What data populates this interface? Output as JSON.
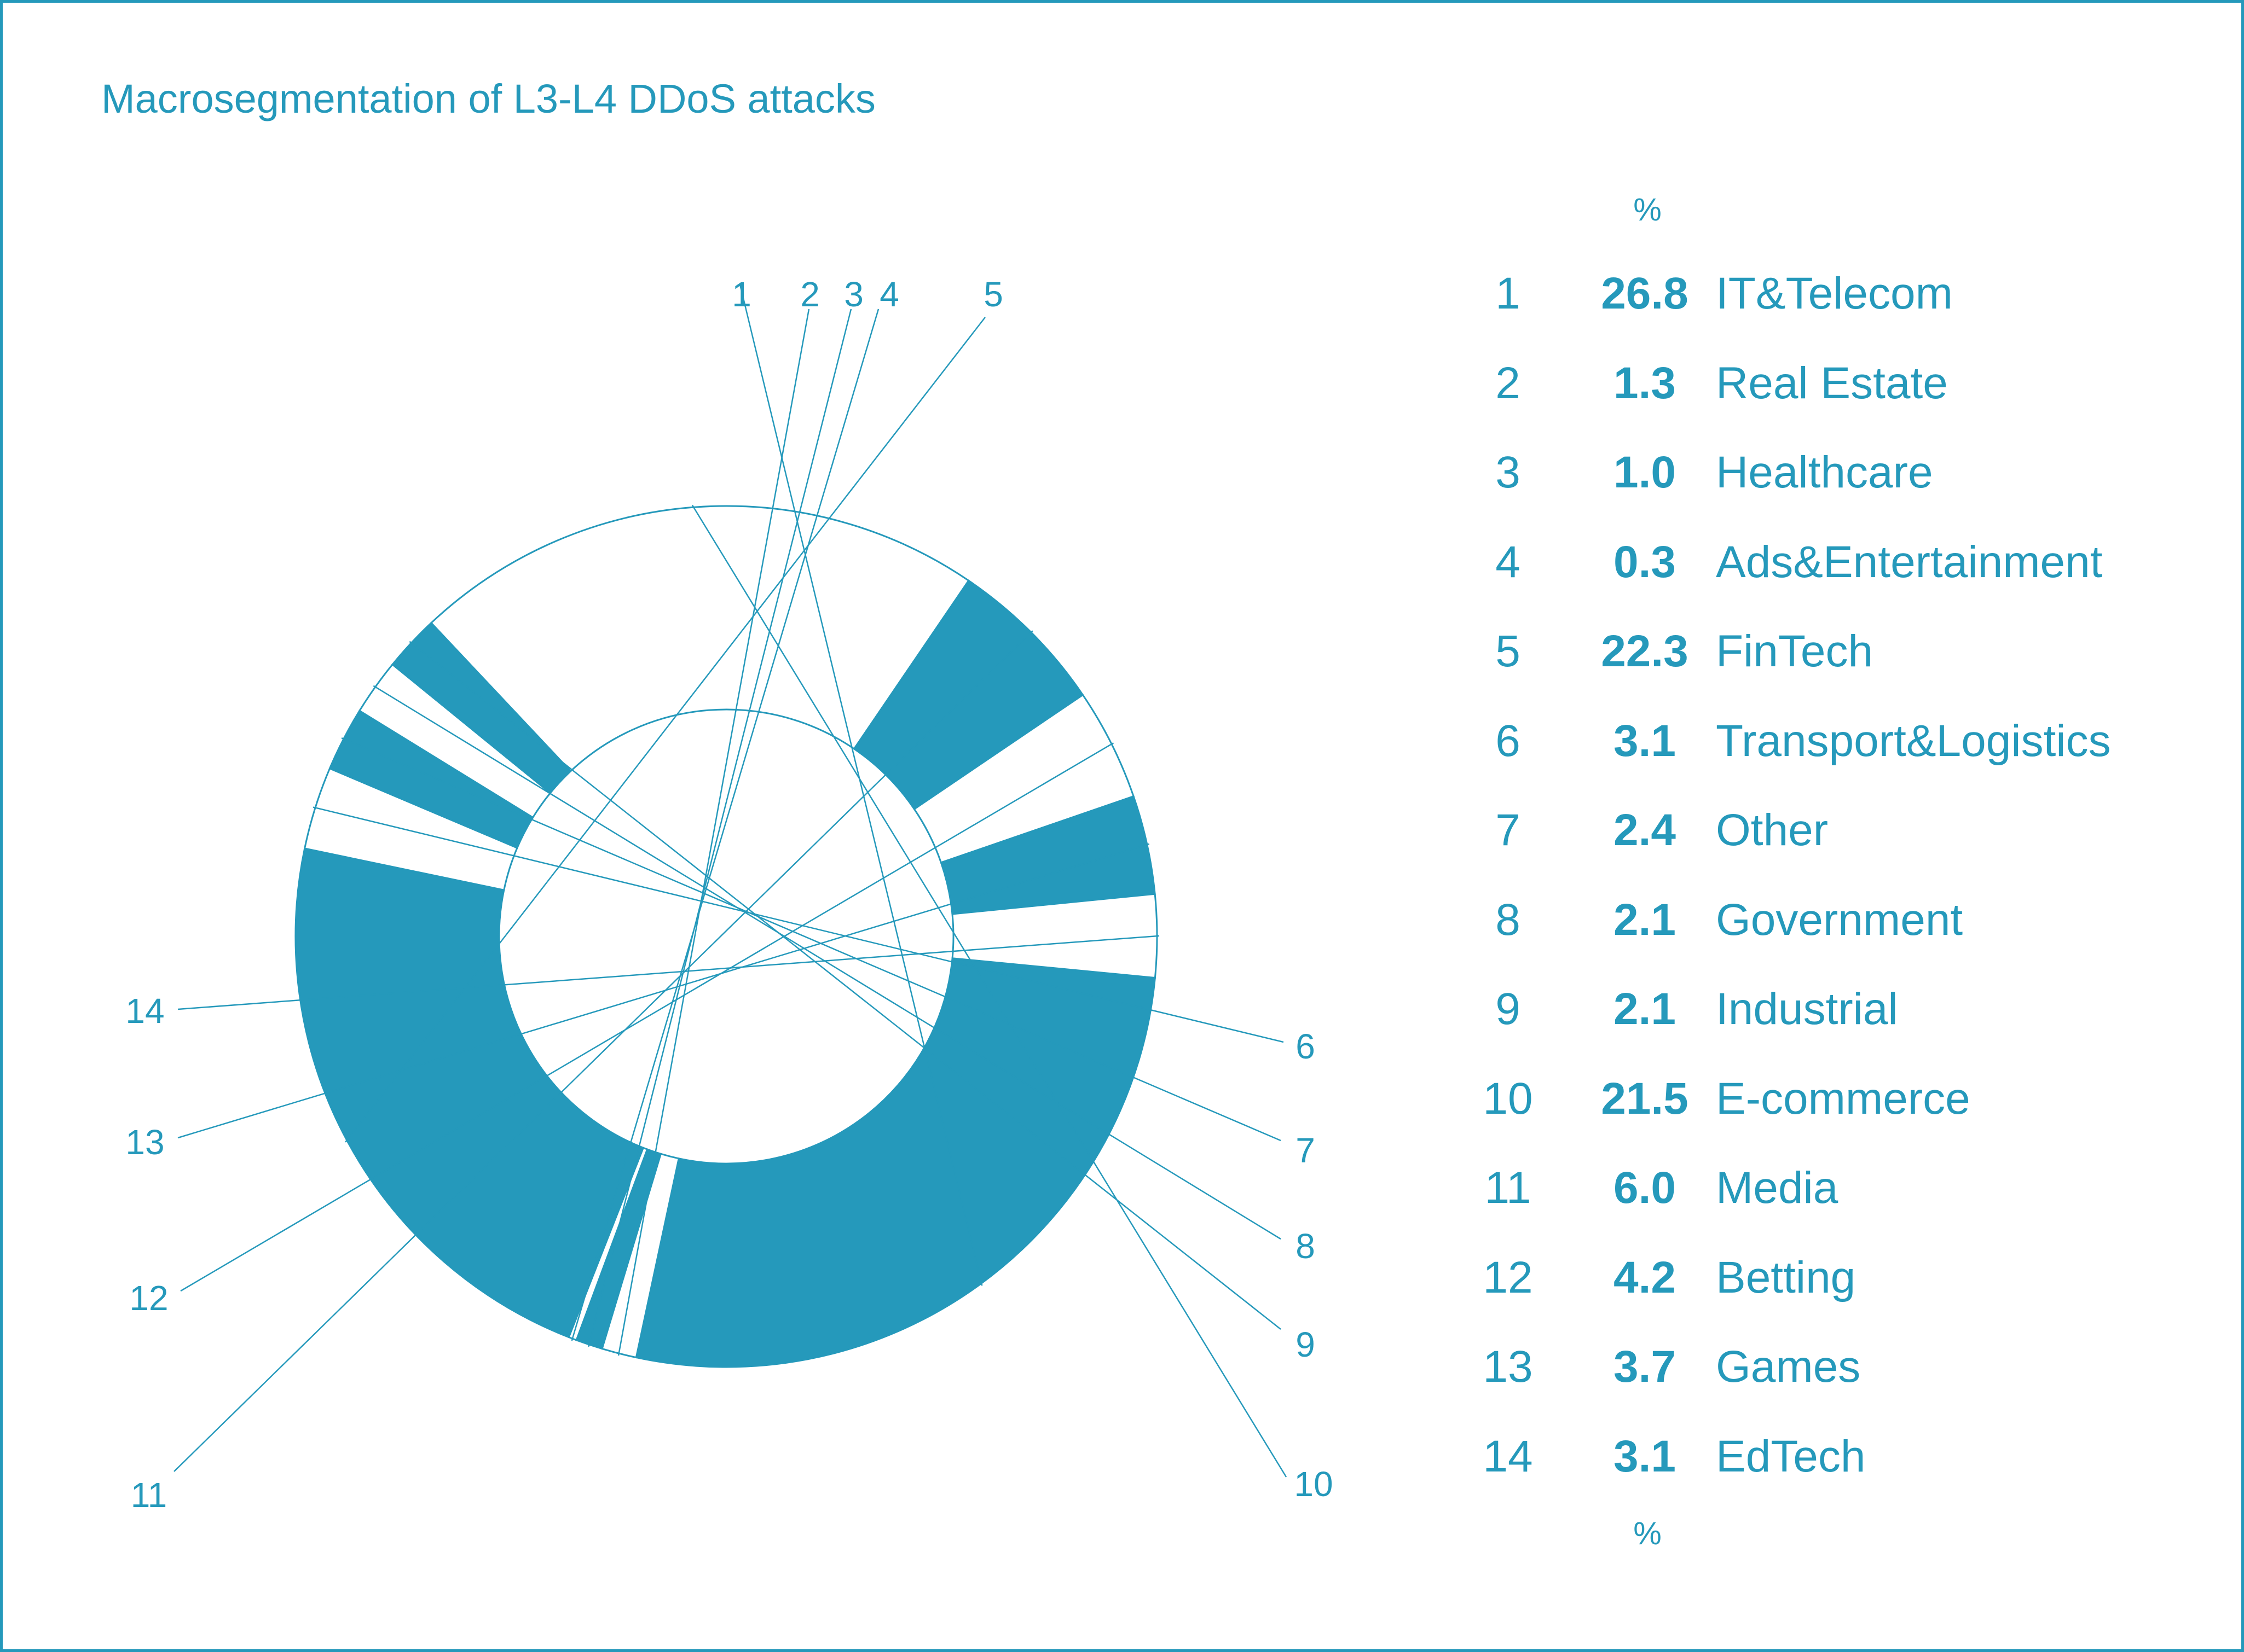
{
  "chart_data": {
    "type": "pie",
    "title": "Macrosegmentation of L3-L4 DDoS attacks",
    "unit_label_top": "%",
    "unit_label_bottom": "%",
    "colors": {
      "accent": "#2599bb",
      "light": "#ffffff"
    },
    "slices": [
      {
        "index": "1",
        "value": 26.8,
        "value_label": "26.8",
        "label": "IT&Telecom",
        "fill": "accent"
      },
      {
        "index": "2",
        "value": 1.3,
        "value_label": "1.3",
        "label": "Real Estate",
        "fill": "light"
      },
      {
        "index": "3",
        "value": 1.0,
        "value_label": "1.0",
        "label": "Healthcare",
        "fill": "accent"
      },
      {
        "index": "4",
        "value": 0.3,
        "value_label": "0.3",
        "label": "Ads&Entertainment",
        "fill": "light"
      },
      {
        "index": "5",
        "value": 22.3,
        "value_label": "22.3",
        "label": "FinTech",
        "fill": "accent"
      },
      {
        "index": "6",
        "value": 3.1,
        "value_label": "3.1",
        "label": "Transport&Logistics",
        "fill": "light"
      },
      {
        "index": "7",
        "value": 2.4,
        "value_label": "2.4",
        "label": "Other",
        "fill": "accent"
      },
      {
        "index": "8",
        "value": 2.1,
        "value_label": "2.1",
        "label": "Government",
        "fill": "light"
      },
      {
        "index": "9",
        "value": 2.1,
        "value_label": "2.1",
        "label": "Industrial",
        "fill": "accent"
      },
      {
        "index": "10",
        "value": 21.5,
        "value_label": "21.5",
        "label": "E-commerce",
        "fill": "light"
      },
      {
        "index": "11",
        "value": 6.0,
        "value_label": "6.0",
        "label": "Media",
        "fill": "accent"
      },
      {
        "index": "12",
        "value": 4.2,
        "value_label": "4.2",
        "label": "Betting",
        "fill": "light"
      },
      {
        "index": "13",
        "value": 3.7,
        "value_label": "3.7",
        "label": "Games",
        "fill": "accent"
      },
      {
        "index": "14",
        "value": 3.1,
        "value_label": "3.1",
        "label": "EdTech",
        "fill": "light"
      }
    ]
  }
}
